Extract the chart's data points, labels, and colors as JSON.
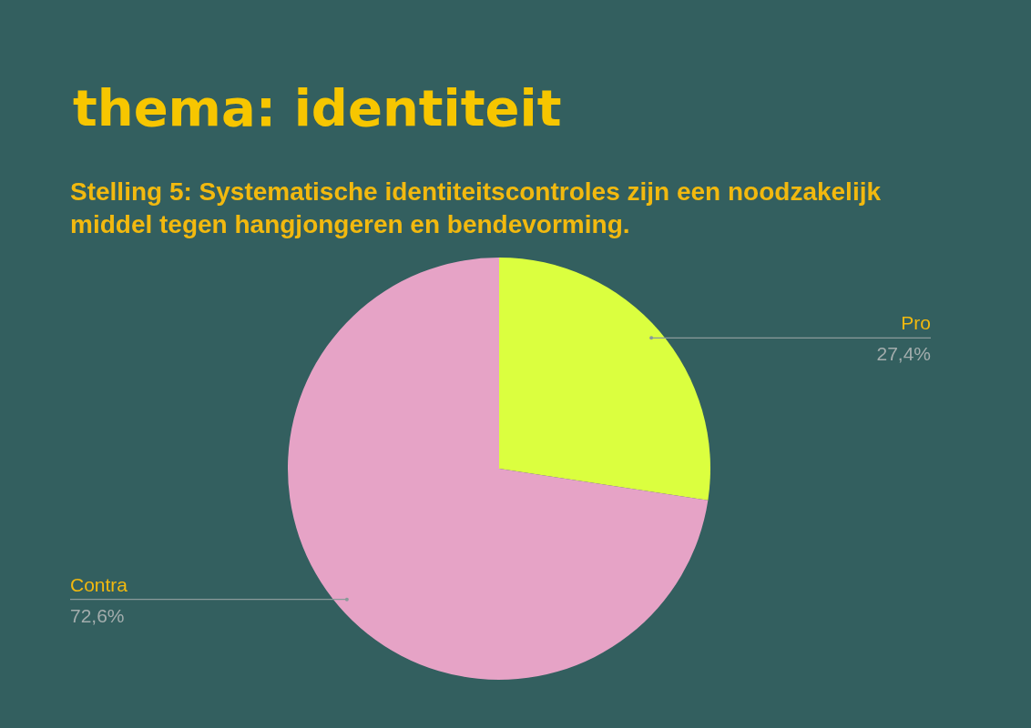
{
  "chart_data": {
    "type": "pie",
    "title": "thema: identiteit",
    "subtitle": "Stelling 5: Systematische identiteitscontroles zijn een noodzakelijk middel tegen hangjongeren en bendevorming.",
    "categories": [
      "Pro",
      "Contra"
    ],
    "values": [
      27.4,
      72.6
    ],
    "colors": [
      "#dbff3f",
      "#e6a3c6"
    ],
    "value_labels": [
      "27,4%",
      "72,6%"
    ]
  }
}
